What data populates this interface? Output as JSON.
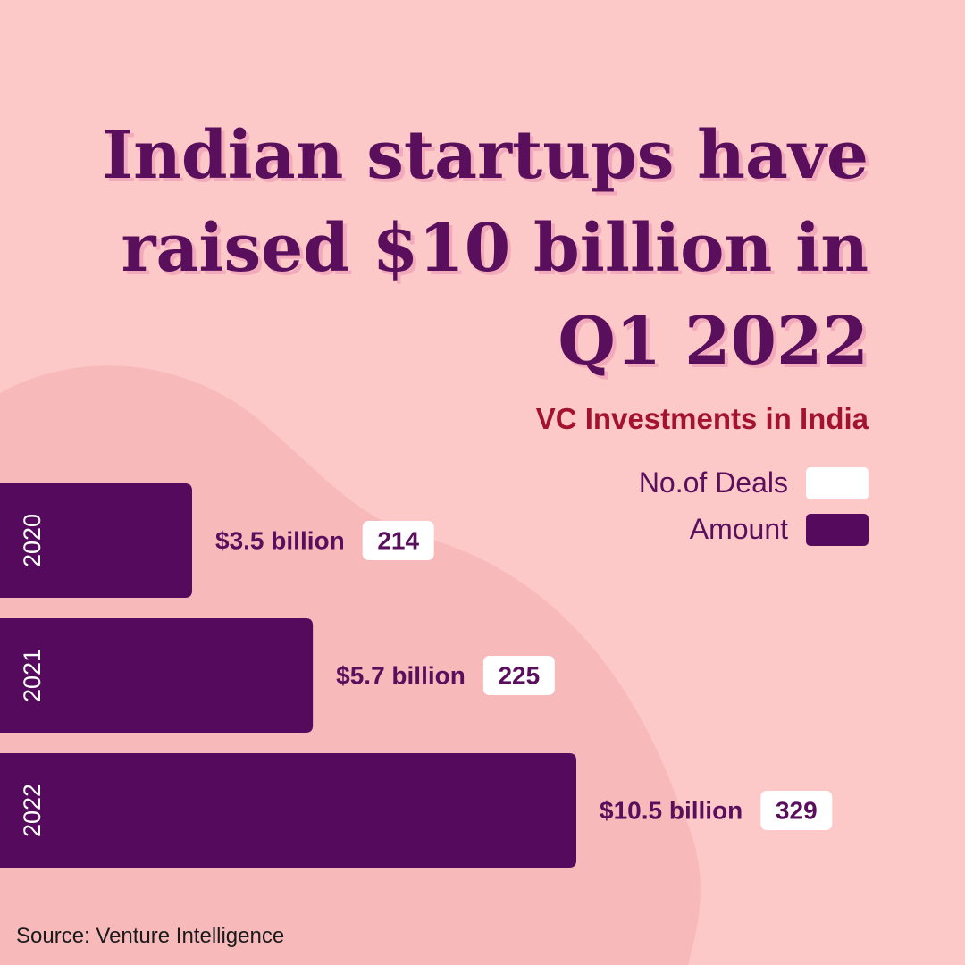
{
  "title": "Indian startups have raised $10 billion in Q1 2022",
  "source": "Source: Venture Intelligence",
  "colors": {
    "background": "#fcc8c8",
    "blob": "#f8b9bb",
    "bar": "#560a5e",
    "title": "#5a0f5c",
    "title_shadow": "#f2a9bb",
    "subtitle": "#a3132f",
    "deal_badge": "#ffffff"
  },
  "legend": {
    "deals": {
      "label": "No.of Deals",
      "color": "#ffffff"
    },
    "amount": {
      "label": "Amount",
      "color": "#560a5e"
    }
  },
  "chart_data": {
    "type": "bar",
    "orientation": "horizontal",
    "title": "VC Investments in India",
    "categories": [
      "2020",
      "2021",
      "2022"
    ],
    "amount_labels": [
      "$3.5 billion",
      "$5.7 billion",
      "$10.5 billion"
    ],
    "deal_labels": [
      "214",
      "225",
      "329"
    ],
    "series": [
      {
        "name": "Amount",
        "unit": "billion USD",
        "values": [
          3.5,
          5.7,
          10.5
        ]
      },
      {
        "name": "No.of Deals",
        "values": [
          214,
          225,
          329
        ]
      }
    ],
    "legend_position": "top-right",
    "grid": false
  }
}
